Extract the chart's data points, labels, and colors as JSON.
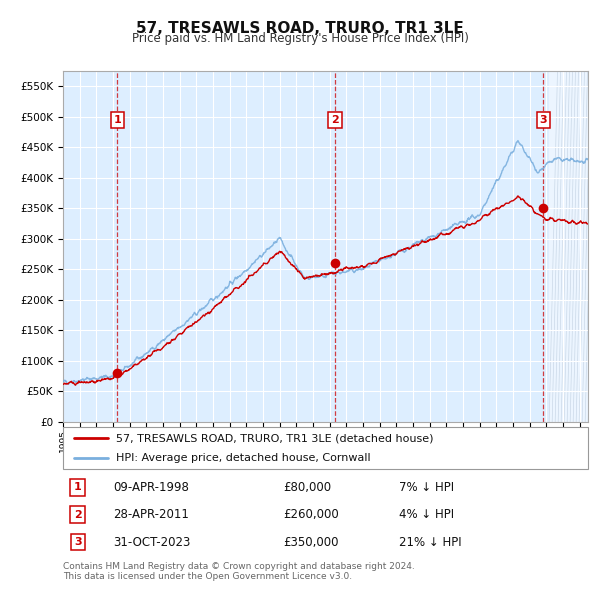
{
  "title": "57, TRESAWLS ROAD, TRURO, TR1 3LE",
  "subtitle": "Price paid vs. HM Land Registry's House Price Index (HPI)",
  "ylabel_ticks": [
    "£0",
    "£50K",
    "£100K",
    "£150K",
    "£200K",
    "£250K",
    "£300K",
    "£350K",
    "£400K",
    "£450K",
    "£500K",
    "£550K"
  ],
  "ylim": [
    0,
    575000
  ],
  "xlim_start": 1995.0,
  "xlim_end": 2026.5,
  "hpi_color": "#7aafde",
  "price_color": "#cc0000",
  "bg_color": "#ddeeff",
  "hatch_color": "#bbccdd",
  "transactions": [
    {
      "num": 1,
      "date_label": "09-APR-1998",
      "x": 1998.27,
      "price": 80000,
      "pct": "7%",
      "direction": "↓"
    },
    {
      "num": 2,
      "date_label": "28-APR-2011",
      "x": 2011.32,
      "price": 260000,
      "pct": "4%",
      "direction": "↓"
    },
    {
      "num": 3,
      "date_label": "31-OCT-2023",
      "x": 2023.83,
      "price": 350000,
      "pct": "21%",
      "direction": "↓"
    }
  ],
  "legend_label_red": "57, TRESAWLS ROAD, TRURO, TR1 3LE (detached house)",
  "legend_label_blue": "HPI: Average price, detached house, Cornwall",
  "footnote": "Contains HM Land Registry data © Crown copyright and database right 2024.\nThis data is licensed under the Open Government Licence v3.0."
}
